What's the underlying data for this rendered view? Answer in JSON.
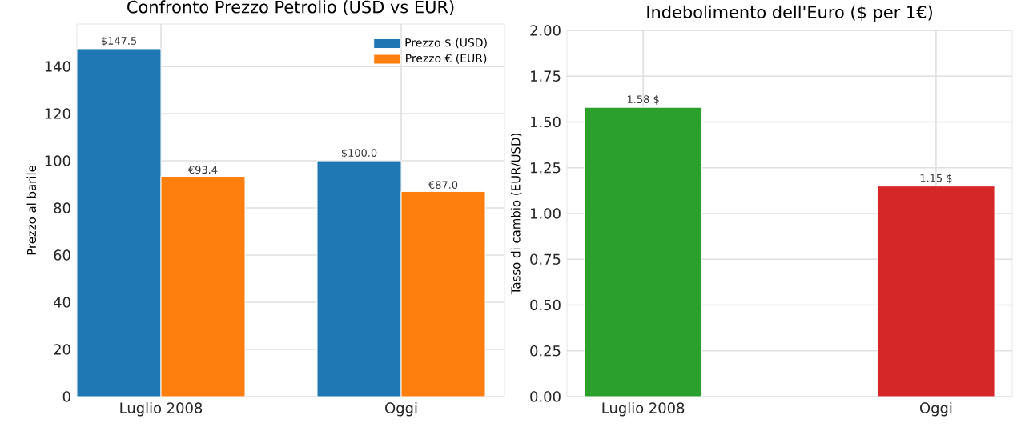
{
  "chart_data": [
    {
      "type": "bar",
      "title": "Confronto Prezzo Petrolio (USD vs EUR)",
      "ylabel": "Prezzo al barile",
      "categories": [
        "Luglio 2008",
        "Oggi"
      ],
      "series": [
        {
          "name": "Prezzo $ (USD)",
          "color": "#1f77b4",
          "values": [
            147.5,
            100.0
          ],
          "value_labels": [
            "$147.5",
            "$100.0"
          ]
        },
        {
          "name": "Prezzo € (EUR)",
          "color": "#ff7f0e",
          "values": [
            93.4,
            87.0
          ],
          "value_labels": [
            "€93.4",
            "€87.0"
          ]
        }
      ],
      "ylim": [
        0,
        158
      ],
      "yticks": [
        0,
        20,
        40,
        60,
        80,
        100,
        120,
        140
      ],
      "grid": true,
      "legend": "top right"
    },
    {
      "type": "bar",
      "title": "Indebolimento dell'Euro ($ per 1€)",
      "ylabel": "Tasso di cambio (EUR/USD)",
      "categories": [
        "Luglio 2008",
        "Oggi"
      ],
      "values": [
        1.58,
        1.15
      ],
      "colors": [
        "#2ca02c",
        "#d62728"
      ],
      "value_labels": [
        "1.58 $",
        "1.15 $"
      ],
      "ylim": [
        0,
        2
      ],
      "yticks": [
        {
          "value": 0,
          "label": "0.00"
        },
        {
          "value": 0.25,
          "label": "0.25"
        },
        {
          "value": 0.5,
          "label": "0.50"
        },
        {
          "value": 0.75,
          "label": "0.75"
        },
        {
          "value": 1,
          "label": "1.00"
        },
        {
          "value": 1.25,
          "label": "1.25"
        },
        {
          "value": 1.5,
          "label": "1.50"
        },
        {
          "value": 1.75,
          "label": "1.75"
        },
        {
          "value": 2,
          "label": "2.00"
        }
      ],
      "grid": true
    }
  ]
}
